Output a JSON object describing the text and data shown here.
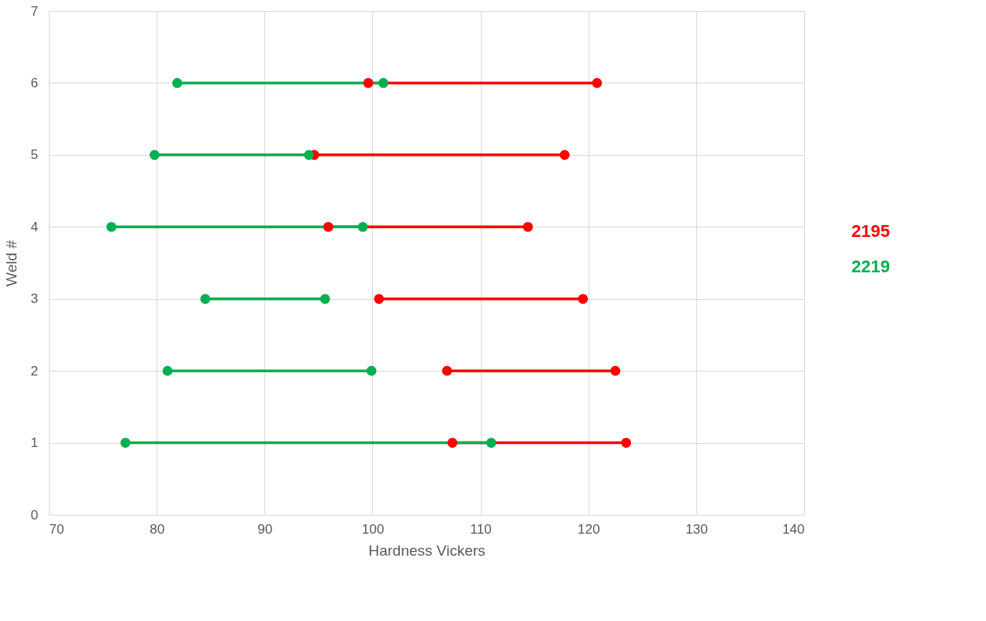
{
  "chart_data": {
    "type": "line",
    "xlabel": "Hardness Vickers",
    "ylabel": "Weld #",
    "xlim": [
      70,
      140
    ],
    "xticks": [
      70,
      80,
      90,
      100,
      110,
      120,
      130,
      140
    ],
    "ylim": [
      0,
      7
    ],
    "yticks": [
      0,
      1,
      2,
      3,
      4,
      5,
      6,
      7
    ],
    "grid": true,
    "legend": "right",
    "marker": "circle",
    "line_style": "solid",
    "series": [
      {
        "name": "2195",
        "color": "#ff0000",
        "x": [
          99.6,
          120.8,
          null,
          94.6,
          117.8,
          null,
          95.9,
          114.4,
          null,
          100.6,
          119.5,
          null,
          106.9,
          122.5,
          null,
          107.4,
          123.5
        ],
        "values": [
          6,
          6,
          null,
          5,
          5,
          null,
          4,
          4,
          null,
          3,
          3,
          null,
          2,
          2,
          null,
          1,
          1
        ]
      },
      {
        "name": "2219",
        "color": "#00b050",
        "x": [
          81.9,
          101.0,
          null,
          79.8,
          94.1,
          null,
          75.8,
          99.1,
          null,
          84.5,
          95.6,
          null,
          81.0,
          99.9,
          null,
          77.1,
          111.0
        ],
        "values": [
          6,
          6,
          null,
          5,
          5,
          null,
          4,
          4,
          null,
          3,
          3,
          null,
          2,
          2,
          null,
          1,
          1
        ]
      }
    ]
  }
}
